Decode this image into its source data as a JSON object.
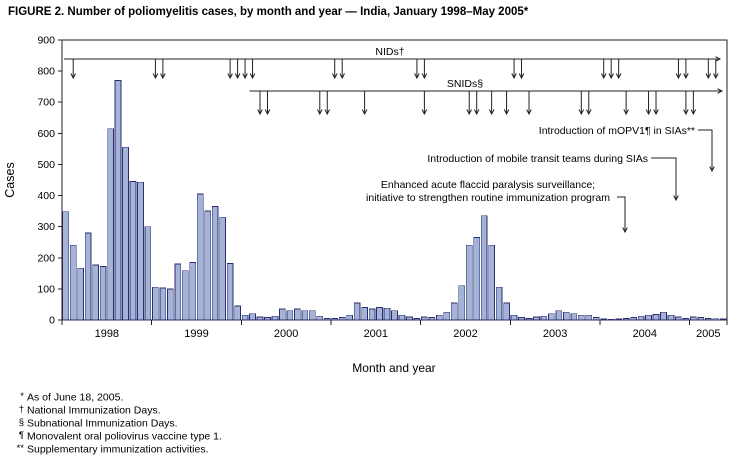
{
  "chart_data": {
    "type": "bar",
    "title": "FIGURE 2. Number of poliomyelitis cases, by month and year — India, January 1998–May 2005*",
    "ylabel": "Cases",
    "xlabel": "Month and year",
    "ylim": [
      0,
      900
    ],
    "y_ticks": [
      0,
      100,
      200,
      300,
      400,
      500,
      600,
      700,
      800,
      900
    ],
    "grid": false,
    "bar_color": "#a4b3d8",
    "bar_border": "#2c2c6e",
    "x_groups": [
      {
        "label": "1998",
        "months": 12
      },
      {
        "label": "1999",
        "months": 12
      },
      {
        "label": "2000",
        "months": 12
      },
      {
        "label": "2001",
        "months": 12
      },
      {
        "label": "2002",
        "months": 12
      },
      {
        "label": "2003",
        "months": 12
      },
      {
        "label": "2004",
        "months": 12
      },
      {
        "label": "2005",
        "months": 5
      }
    ],
    "series": [
      {
        "name": "Cases",
        "values": [
          348,
          240,
          166,
          280,
          177,
          172,
          615,
          770,
          555,
          445,
          443,
          300,
          105,
          103,
          100,
          180,
          158,
          185,
          405,
          350,
          365,
          330,
          182,
          45,
          15,
          20,
          10,
          8,
          12,
          35,
          30,
          35,
          30,
          30,
          12,
          5,
          5,
          8,
          15,
          55,
          40,
          35,
          40,
          38,
          30,
          15,
          10,
          5,
          10,
          8,
          15,
          25,
          55,
          110,
          240,
          265,
          335,
          240,
          105,
          55,
          15,
          8,
          5,
          10,
          12,
          20,
          30,
          25,
          20,
          15,
          15,
          8,
          3,
          2,
          3,
          5,
          8,
          12,
          15,
          18,
          25,
          15,
          10,
          5,
          10,
          8,
          5,
          4,
          3
        ]
      }
    ],
    "annotations": {
      "nids": {
        "label": "NIDs†",
        "arrow_months": [
          1,
          12,
          13,
          22,
          23,
          24,
          25,
          36,
          37,
          47,
          48,
          60,
          61,
          72,
          73,
          74,
          82,
          83,
          86,
          87
        ]
      },
      "snids": {
        "label": "SNIDs§",
        "line_start_month": 25,
        "arrow_months": [
          26,
          27,
          34,
          35,
          40,
          48,
          54,
          55,
          57,
          59,
          62,
          69,
          70,
          75,
          78,
          79,
          83,
          84
        ]
      },
      "mopv1": {
        "label": "Introduction of mOPV1¶ in SIAs**"
      },
      "transit": {
        "label": "Introduction of mobile transit teams during SIAs"
      },
      "eafp": {
        "line1": "Enhanced acute flaccid paralysis surveillance;",
        "line2": "initiative to strengthen routine immunization program"
      }
    }
  },
  "footnotes": [
    {
      "marker": "*",
      "text": "As of June 18, 2005."
    },
    {
      "marker": "†",
      "text": "National Immunization Days."
    },
    {
      "marker": "§",
      "text": "Subnational Immunization Days."
    },
    {
      "marker": "¶",
      "text": "Monovalent oral poliovirus vaccine type 1."
    },
    {
      "marker": "**",
      "text": "Supplementary immunization activities."
    }
  ]
}
